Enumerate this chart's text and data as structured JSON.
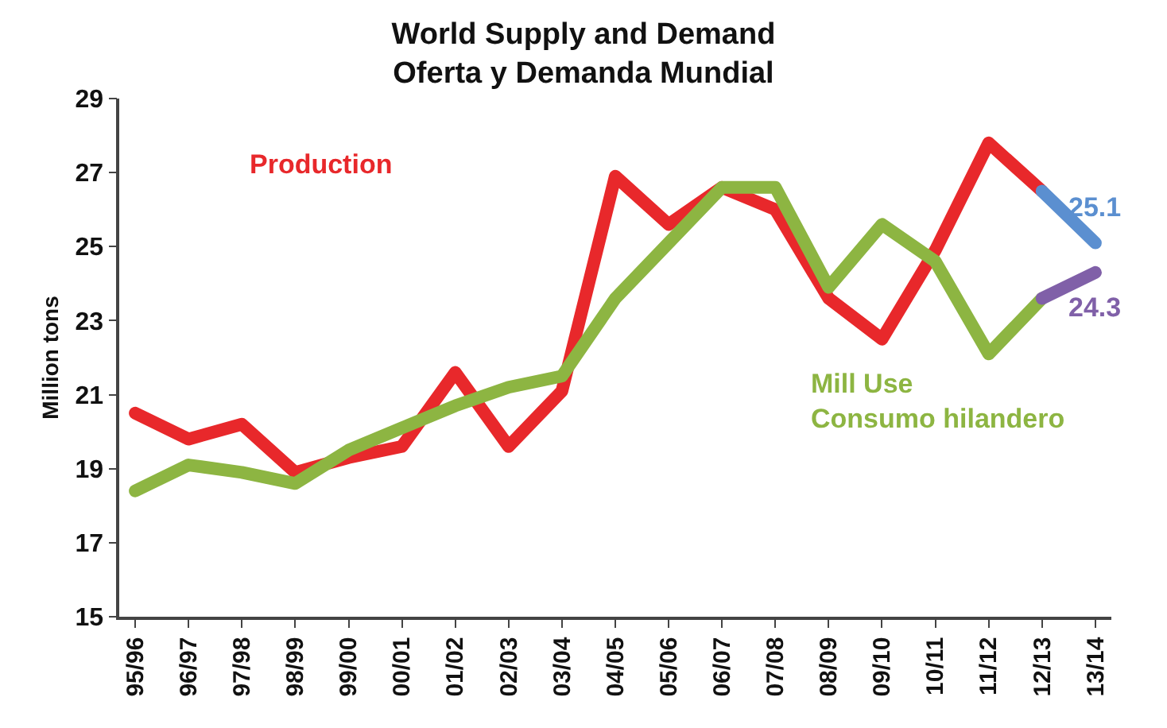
{
  "chart_data": {
    "type": "line",
    "title": "World Supply and Demand\nOferta y Demanda Mundial",
    "ylabel": "Million tons",
    "categories": [
      "95/96",
      "96/97",
      "97/98",
      "98/99",
      "99/00",
      "00/01",
      "01/02",
      "02/03",
      "03/04",
      "04/05",
      "05/06",
      "06/07",
      "07/08",
      "08/09",
      "09/10",
      "10/11",
      "11/12",
      "12/13",
      "13/14"
    ],
    "series": [
      {
        "name": "Production",
        "color": "#e8282b",
        "values": [
          20.5,
          19.8,
          20.2,
          18.9,
          19.3,
          19.6,
          21.6,
          19.6,
          21.1,
          26.9,
          25.6,
          26.6,
          26.0,
          23.6,
          22.5,
          24.9,
          27.8,
          26.5,
          null
        ]
      },
      {
        "name": "Mill Use\nConsumo hilandero",
        "color": "#8db542",
        "values": [
          18.4,
          19.1,
          18.9,
          18.6,
          19.5,
          20.1,
          20.7,
          21.2,
          21.5,
          23.6,
          25.1,
          26.6,
          26.6,
          23.9,
          25.6,
          24.6,
          22.1,
          23.6,
          null
        ]
      },
      {
        "color": "#5b8fd0",
        "values": [
          null,
          null,
          null,
          null,
          null,
          null,
          null,
          null,
          null,
          null,
          null,
          null,
          null,
          null,
          null,
          null,
          null,
          26.5,
          25.1
        ],
        "value_labels": [
          null,
          null,
          null,
          null,
          null,
          null,
          null,
          null,
          null,
          null,
          null,
          null,
          null,
          null,
          null,
          null,
          null,
          null,
          "25.1"
        ]
      },
      {
        "color": "#8060a8",
        "values": [
          null,
          null,
          null,
          null,
          null,
          null,
          null,
          null,
          null,
          null,
          null,
          null,
          null,
          null,
          null,
          null,
          null,
          23.6,
          24.3
        ],
        "value_labels": [
          null,
          null,
          null,
          null,
          null,
          null,
          null,
          null,
          null,
          null,
          null,
          null,
          null,
          null,
          null,
          null,
          null,
          null,
          "24.3"
        ]
      }
    ],
    "ylim": [
      15,
      29
    ],
    "yticks": [
      15,
      17,
      19,
      21,
      23,
      25,
      27,
      29
    ],
    "grid": false,
    "legend": false,
    "marker": "none",
    "line_style": "solid"
  }
}
